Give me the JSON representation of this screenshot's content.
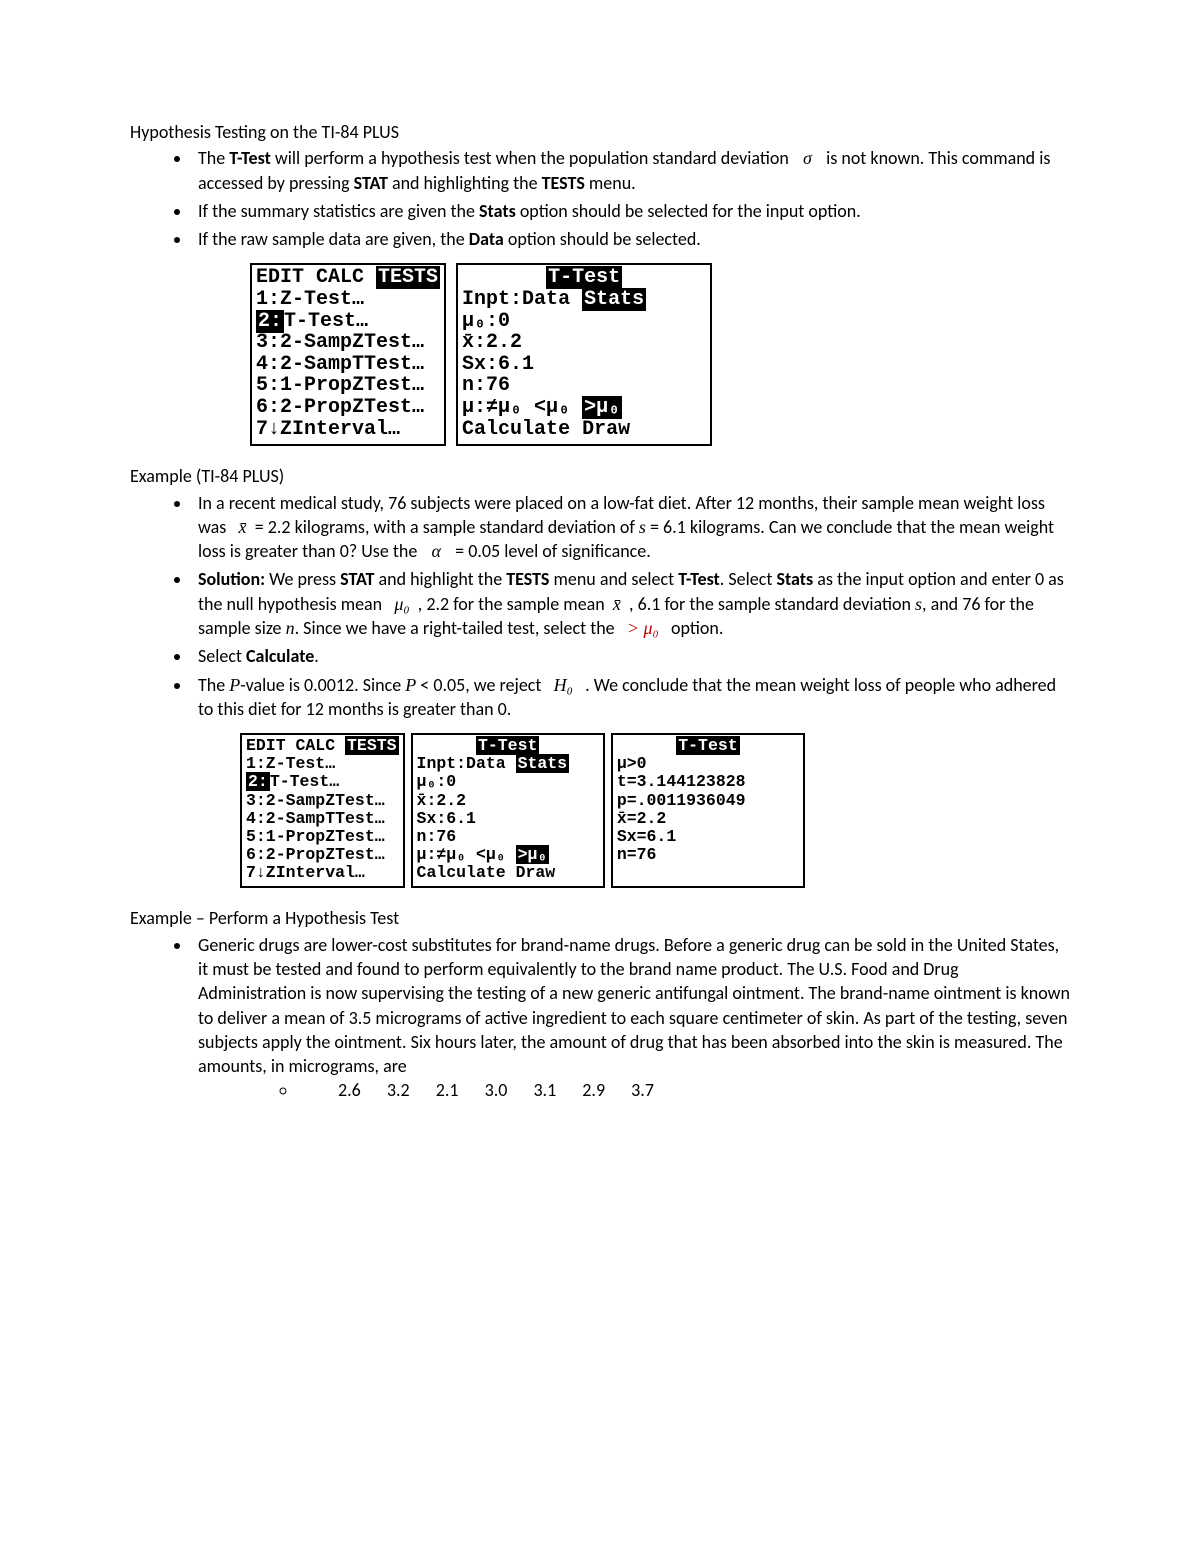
{
  "section1": {
    "title": "Hypothesis Testing on the TI-84 PLUS",
    "bullet1a": "The ",
    "bullet1b": "T-Test",
    "bullet1c": " will perform a hypothesis test when the population standard deviation ",
    "bullet1d": "σ",
    "bullet1e": " is not known.  This command is accessed by pressing ",
    "bullet1f": "STAT",
    "bullet1g": " and highlighting the ",
    "bullet1h": "TESTS",
    "bullet1i": " menu.",
    "bullet2a": "If the summary statistics are given the ",
    "bullet2b": "Stats",
    "bullet2c": " option should be selected for the input option.",
    "bullet3a": "If the raw sample data are given, the ",
    "bullet3b": "Data",
    "bullet3c": " option should be selected."
  },
  "screens1": {
    "left": {
      "l1a": "EDIT CALC ",
      "l1b": "TESTS",
      "l2": "1:Z-Test…",
      "l3a": "2:",
      "l3b": "T-Test…",
      "l4": "3:2-SampZTest…",
      "l5": "4:2-SampTTest…",
      "l6": "5:1-PropZTest…",
      "l7": "6:2-PropZTest…",
      "l8": "7↓ZInterval…"
    },
    "right": {
      "t": "T-Test",
      "l2a": "Inpt:Data ",
      "l2b": "Stats",
      "l3": "μ₀:0",
      "l4": "x̄:2.2",
      "l5": "Sx:6.1",
      "l6": "n:76",
      "l7a": "μ:≠μ₀ <μ₀ ",
      "l7b": ">μ₀",
      "l8": "Calculate Draw"
    }
  },
  "section2": {
    "title": "Example (TI-84 PLUS)",
    "b1a": "In a recent medical study, 76 subjects were placed on a low-fat diet.  After 12 months, their sample mean weight loss was ",
    "b1b": "x̄",
    "b1c": " = 2.2 kilograms, with a sample standard deviation of ",
    "b1d": "s",
    "b1e": " = 6.1 kilograms.  Can we conclude that the mean weight loss is greater than 0?  Use the ",
    "b1f": "α",
    "b1g": " = 0.05 level of significance.",
    "b2a": "Solution:",
    "b2b": " We press ",
    "b2c": "STAT",
    "b2d": " and highlight the ",
    "b2e": "TESTS",
    "b2f": " menu and select ",
    "b2g": "T-Test",
    "b2h": ". Select ",
    "b2i": "Stats",
    "b2j": " as the input option and enter 0 as the null hypothesis mean ",
    "b2k": "μ₀",
    "b2l": " , 2.2 for the sample mean ",
    "b2m": "x̄",
    "b2n": " , 6.1 for the sample standard deviation ",
    "b2o": "s",
    "b2p": ", and 76 for the sample size ",
    "b2q": "n",
    "b2r": ".  Since we have a right-tailed test, select the ",
    "b2s": "> μ₀",
    "b2t": " option.",
    "b3a": "Select ",
    "b3b": "Calculate",
    "b3c": ".",
    "b4a": "The ",
    "b4b": "P",
    "b4c": "-value is 0.0012. Since ",
    "b4d": "P",
    "b4e": " < 0.05, we reject ",
    "b4f": "H₀",
    "b4g": " .  We conclude that the mean weight loss of people who adhered to this diet for 12 months is greater than 0."
  },
  "screens2": {
    "a": {
      "l1a": "EDIT CALC ",
      "l1b": "TESTS",
      "l2": "1:Z-Test…",
      "l3a": "2:",
      "l3b": "T-Test…",
      "l4": "3:2-SampZTest…",
      "l5": "4:2-SampTTest…",
      "l6": "5:1-PropZTest…",
      "l7": "6:2-PropZTest…",
      "l8": "7↓ZInterval…"
    },
    "b": {
      "t": "T-Test",
      "l2a": "Inpt:Data ",
      "l2b": "Stats",
      "l3": "μ₀:0",
      "l4": "x̄:2.2",
      "l5": "Sx:6.1",
      "l6": "n:76",
      "l7a": "μ:≠μ₀ <μ₀ ",
      "l7b": ">μ₀",
      "l8": "Calculate Draw"
    },
    "c": {
      "t": "T-Test",
      "l2": "μ>0",
      "l3": "t=3.144123828",
      "l4": "p=.0011936049",
      "l5": "x̄=2.2",
      "l6": "Sx=6.1",
      "l7": "n=76"
    }
  },
  "section3": {
    "title": "Example – Perform a Hypothesis Test",
    "b1": "Generic drugs are lower-cost substitutes for brand-name drugs. Before a generic drug can be sold in the United States, it must be tested and found to perform equivalently to the brand name product. The U.S. Food and Drug Administration is now supervising the testing of a new generic antifungal ointment. The brand-name ointment is known to deliver a mean of 3.5 micrograms of active ingredient to each square centimeter of skin. As part of the testing, seven subjects apply the ointment. Six hours later, the amount of drug that has been absorbed into the skin is measured. The amounts, in micrograms, are",
    "data": "2.6 3.2 2.1 3.0 3.1 2.9 3.7"
  },
  "style": {
    "bg": "#ffffff",
    "text": "#000000",
    "font_main": "Calibri",
    "font_mono": "Courier New",
    "fontsize_body": 18,
    "fontsize_lcd_large": 20,
    "fontsize_lcd_small": 16.5,
    "lcd_border": "#000000"
  }
}
